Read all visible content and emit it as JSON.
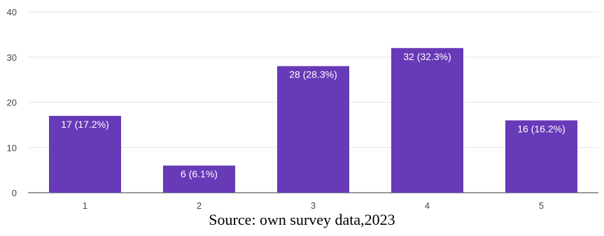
{
  "chart_data": {
    "type": "bar",
    "categories": [
      "1",
      "2",
      "3",
      "4",
      "5"
    ],
    "values": [
      17,
      6,
      28,
      32,
      16
    ],
    "data_labels": [
      "17 (17.2%)",
      "6 (6.1%)",
      "28 (28.3%)",
      "32 (32.3%)",
      "16 (16.2%)"
    ],
    "ylim": [
      0,
      40
    ],
    "yticks": [
      0,
      10,
      20,
      30,
      40
    ],
    "grid": true,
    "bar_color": "#673ab7"
  },
  "caption": "Source: own survey data,2023"
}
